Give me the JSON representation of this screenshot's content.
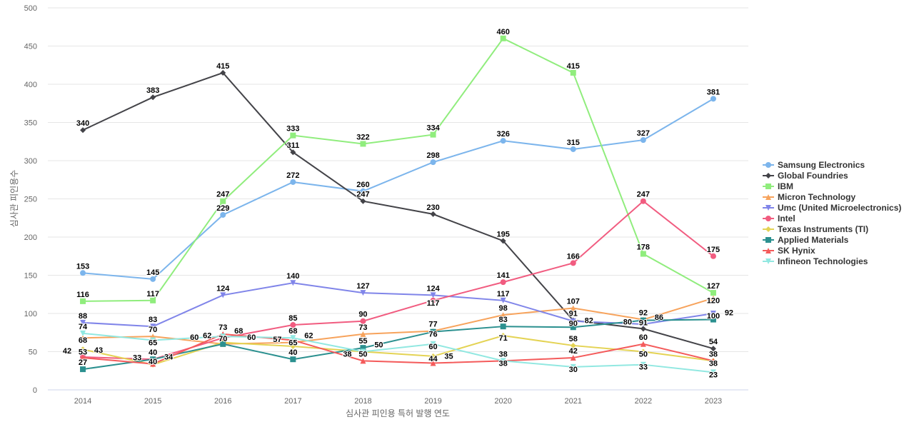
{
  "chart_data": {
    "type": "line",
    "title": "",
    "xlabel": "심사관 피인용 특허 발행 연도",
    "ylabel": "심사관 피인용수",
    "ylim": [
      0,
      500
    ],
    "yticks": [
      0,
      50,
      100,
      150,
      200,
      250,
      300,
      350,
      400,
      450,
      500
    ],
    "categories": [
      "2014",
      "2015",
      "2016",
      "2017",
      "2018",
      "2019",
      "2020",
      "2021",
      "2022",
      "2023"
    ],
    "grid": true,
    "legend_position": "right",
    "series": [
      {
        "name": "Samsung Electronics",
        "color": "#7cb5ec",
        "marker": "circle",
        "values": [
          153,
          145,
          229,
          272,
          260,
          298,
          326,
          315,
          327,
          381
        ]
      },
      {
        "name": "Global Foundries",
        "color": "#434348",
        "marker": "diamond",
        "values": [
          340,
          383,
          415,
          311,
          247,
          230,
          195,
          91,
          80,
          54
        ]
      },
      {
        "name": "IBM",
        "color": "#90ed7d",
        "marker": "square",
        "values": [
          116,
          117,
          247,
          333,
          322,
          334,
          460,
          415,
          178,
          127
        ]
      },
      {
        "name": "Micron Technology",
        "color": "#f7a35c",
        "marker": "triangle",
        "values": [
          68,
          70,
          60,
          62,
          73,
          77,
          98,
          107,
          92,
          120
        ]
      },
      {
        "name": "Umc (United Microelectronics)",
        "color": "#8085e9",
        "marker": "triangle-down",
        "values": [
          88,
          83,
          124,
          140,
          127,
          124,
          117,
          90,
          86,
          100
        ]
      },
      {
        "name": "Intel",
        "color": "#f15c80",
        "marker": "circle",
        "values": [
          43,
          40,
          68,
          85,
          90,
          117,
          141,
          166,
          247,
          175
        ]
      },
      {
        "name": "Texas Instruments (TI)",
        "color": "#e4d354",
        "marker": "diamond",
        "values": [
          53,
          33,
          62,
          57,
          50,
          44,
          71,
          58,
          50,
          38
        ]
      },
      {
        "name": "Applied Materials",
        "color": "#2b908f",
        "marker": "square",
        "values": [
          27,
          40,
          60,
          40,
          55,
          76,
          83,
          82,
          91,
          92
        ]
      },
      {
        "name": "SK Hynix",
        "color": "#f45b5b",
        "marker": "triangle",
        "values": [
          42,
          34,
          73,
          65,
          38,
          35,
          38,
          42,
          60,
          38
        ]
      },
      {
        "name": "Infineon Technologies",
        "color": "#91e8e1",
        "marker": "triangle-down",
        "values": [
          74,
          65,
          70,
          68,
          50,
          60,
          38,
          30,
          33,
          23
        ]
      }
    ]
  }
}
